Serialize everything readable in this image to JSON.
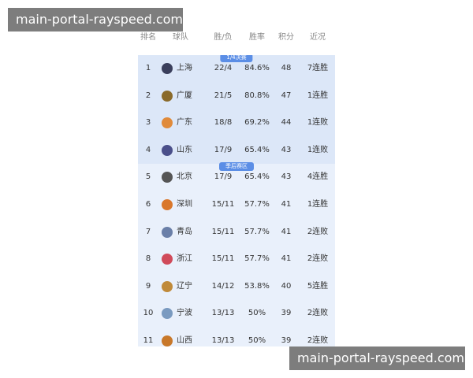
{
  "watermark": {
    "top": "main-portal-rayspeed.com",
    "bottom": "main-portal-rayspeed.com"
  },
  "table": {
    "columns": [
      "排名",
      "球队",
      "胜/负",
      "胜率",
      "积分",
      "近况"
    ],
    "sections": [
      {
        "label": "1/4决赛",
        "rows": [
          [
            1,
            "上海",
            "22/4",
            "84.6%",
            48,
            "7连胜"
          ],
          [
            2,
            "广厦",
            "21/5",
            "80.8%",
            47,
            "1连胜"
          ],
          [
            3,
            "广东",
            "18/8",
            "69.2%",
            44,
            "1连败"
          ],
          [
            4,
            "山东",
            "17/9",
            "65.4%",
            43,
            "1连败"
          ]
        ]
      },
      {
        "label": "季后赛区",
        "rows": [
          [
            5,
            "北京",
            "17/9",
            "65.4%",
            43,
            "4连胜"
          ],
          [
            6,
            "深圳",
            "15/11",
            "57.7%",
            41,
            "1连胜"
          ],
          [
            7,
            "青岛",
            "15/11",
            "57.7%",
            41,
            "2连败"
          ],
          [
            8,
            "浙江",
            "15/11",
            "57.7%",
            41,
            "2连败"
          ],
          [
            9,
            "辽宁",
            "14/12",
            "53.8%",
            40,
            "5连胜"
          ],
          [
            10,
            "宁波",
            "13/13",
            "50%",
            39,
            "2连败"
          ],
          [
            11,
            "山西",
            "13/13",
            "50%",
            39,
            "2连败"
          ]
        ]
      }
    ]
  }
}
